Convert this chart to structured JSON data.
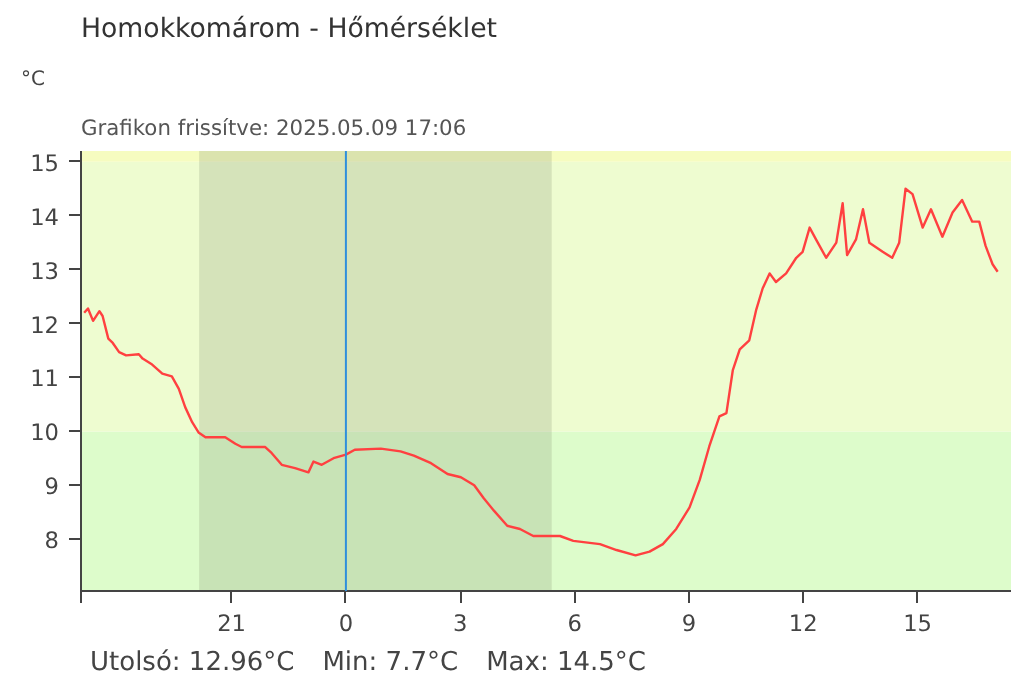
{
  "chart_data": {
    "type": "line",
    "title": "Homokkomárom - Hőmérséklet",
    "subtitle": "Grafikon frissítve: 2025.05.09 17:06",
    "ylabel": "°C",
    "annotations": [
      "Utolsó: 12.96°C",
      "Min: 7.7°C",
      "Max: 14.5°C"
    ],
    "x": [
      "2025-05-08T17:08",
      "2025-05-08T17:14",
      "2025-05-08T17:22",
      "2025-05-08T17:32",
      "2025-05-08T17:37",
      "2025-05-08T17:46",
      "2025-05-08T17:53",
      "2025-05-08T18:03",
      "2025-05-08T18:14",
      "2025-05-08T18:34",
      "2025-05-08T18:40",
      "2025-05-08T18:55",
      "2025-05-08T19:11",
      "2025-05-08T19:26",
      "2025-05-08T19:37",
      "2025-05-08T19:47",
      "2025-05-08T19:58",
      "2025-05-08T20:08",
      "2025-05-08T20:19",
      "2025-05-08T20:50",
      "2025-05-08T21:06",
      "2025-05-08T21:16",
      "2025-05-08T21:53",
      "2025-05-08T22:03",
      "2025-05-08T22:19",
      "2025-05-08T22:40",
      "2025-05-08T23:01",
      "2025-05-08T23:09",
      "2025-05-08T23:22",
      "2025-05-08T23:42",
      "2025-05-09T00:00",
      "2025-05-09T00:14",
      "2025-05-09T00:55",
      "2025-05-09T01:26",
      "2025-05-09T01:47",
      "2025-05-09T02:14",
      "2025-05-09T02:40",
      "2025-05-09T03:01",
      "2025-05-09T03:22",
      "2025-05-09T03:37",
      "2025-05-09T03:53",
      "2025-05-09T04:14",
      "2025-05-09T04:34",
      "2025-05-09T04:55",
      "2025-05-09T05:05",
      "2025-05-09T05:37",
      "2025-05-09T05:58",
      "2025-05-09T06:40",
      "2025-05-09T07:06",
      "2025-05-09T07:36",
      "2025-05-09T07:58",
      "2025-05-09T08:19",
      "2025-05-09T08:40",
      "2025-05-09T09:01",
      "2025-05-09T09:17",
      "2025-05-09T09:32",
      "2025-05-09T09:48",
      "2025-05-09T09:59",
      "2025-05-09T10:09",
      "2025-05-09T10:20",
      "2025-05-09T10:35",
      "2025-05-09T10:46",
      "2025-05-09T10:56",
      "2025-05-09T11:07",
      "2025-05-09T11:17",
      "2025-05-09T11:33",
      "2025-05-09T11:49",
      "2025-05-09T11:59",
      "2025-05-09T12:10",
      "2025-05-09T12:20",
      "2025-05-09T12:36",
      "2025-05-09T12:52",
      "2025-05-09T13:02",
      "2025-05-09T13:09",
      "2025-05-09T13:23",
      "2025-05-09T13:34",
      "2025-05-09T13:44",
      "2025-05-09T14:05",
      "2025-05-09T14:20",
      "2025-05-09T14:31",
      "2025-05-09T14:41",
      "2025-05-09T14:52",
      "2025-05-09T15:08",
      "2025-05-09T15:21",
      "2025-05-09T15:39",
      "2025-05-09T15:55",
      "2025-05-09T16:10",
      "2025-05-09T16:26",
      "2025-05-09T16:37",
      "2025-05-09T16:47",
      "2025-05-09T16:58",
      "2025-05-09T17:06"
    ],
    "series": [
      {
        "color": "#ff4040",
        "values": [
          12.2,
          12.28,
          12.05,
          12.23,
          12.14,
          11.72,
          11.64,
          11.47,
          11.41,
          11.43,
          11.35,
          11.24,
          11.07,
          11.02,
          10.79,
          10.45,
          10.17,
          9.98,
          9.89,
          9.89,
          9.77,
          9.71,
          9.71,
          9.6,
          9.38,
          9.32,
          9.24,
          9.44,
          9.38,
          9.51,
          9.57,
          9.66,
          9.68,
          9.63,
          9.55,
          9.41,
          9.21,
          9.15,
          9.0,
          8.76,
          8.53,
          8.25,
          8.19,
          8.06,
          8.06,
          8.06,
          7.97,
          7.91,
          7.8,
          7.7,
          7.77,
          7.91,
          8.19,
          8.59,
          9.1,
          9.72,
          10.28,
          10.34,
          11.13,
          11.52,
          11.69,
          12.26,
          12.65,
          12.93,
          12.77,
          12.93,
          13.22,
          13.33,
          13.78,
          13.56,
          13.22,
          13.5,
          14.23,
          13.27,
          13.56,
          14.12,
          13.5,
          13.33,
          13.22,
          13.5,
          14.5,
          14.4,
          13.78,
          14.12,
          13.61,
          14.06,
          14.29,
          13.89,
          13.89,
          13.44,
          13.1,
          12.96
        ]
      }
    ],
    "xlim": [
      "2025-05-08T17:03",
      "2025-05-09T17:27"
    ],
    "ylim": [
      7.04,
      15.2
    ],
    "xticks": [
      {
        "value": "2025-05-08T17:03",
        "label": null
      },
      {
        "value": "2025-05-08T21:00",
        "label": "21"
      },
      {
        "value": "2025-05-09T00:00",
        "label": "0"
      },
      {
        "value": "2025-05-09T03:00",
        "label": "3"
      },
      {
        "value": "2025-05-09T06:00",
        "label": "6"
      },
      {
        "value": "2025-05-09T09:00",
        "label": "9"
      },
      {
        "value": "2025-05-09T12:00",
        "label": "12"
      },
      {
        "value": "2025-05-09T15:00",
        "label": "15"
      }
    ],
    "yticks": [
      8,
      9,
      10,
      11,
      12,
      13,
      14,
      15
    ],
    "bands": [
      {
        "axis": "y",
        "from": 7.04,
        "to": 10,
        "color": "#ddfccb"
      },
      {
        "axis": "y",
        "from": 10,
        "to": 15,
        "color": "#eefcd0"
      },
      {
        "axis": "y",
        "from": 15,
        "to": 15.2,
        "color": "#f6fcc0"
      },
      {
        "axis": "x",
        "from": "2025-05-08T20:09",
        "to": "2025-05-09T05:24",
        "color": "#8c9878"
      }
    ],
    "ref_lines": [
      {
        "axis": "x",
        "value": "2025-05-09T00:00",
        "color": "#2e8fdc"
      }
    ],
    "grid": false,
    "marker": "none",
    "line_style": "solid"
  }
}
